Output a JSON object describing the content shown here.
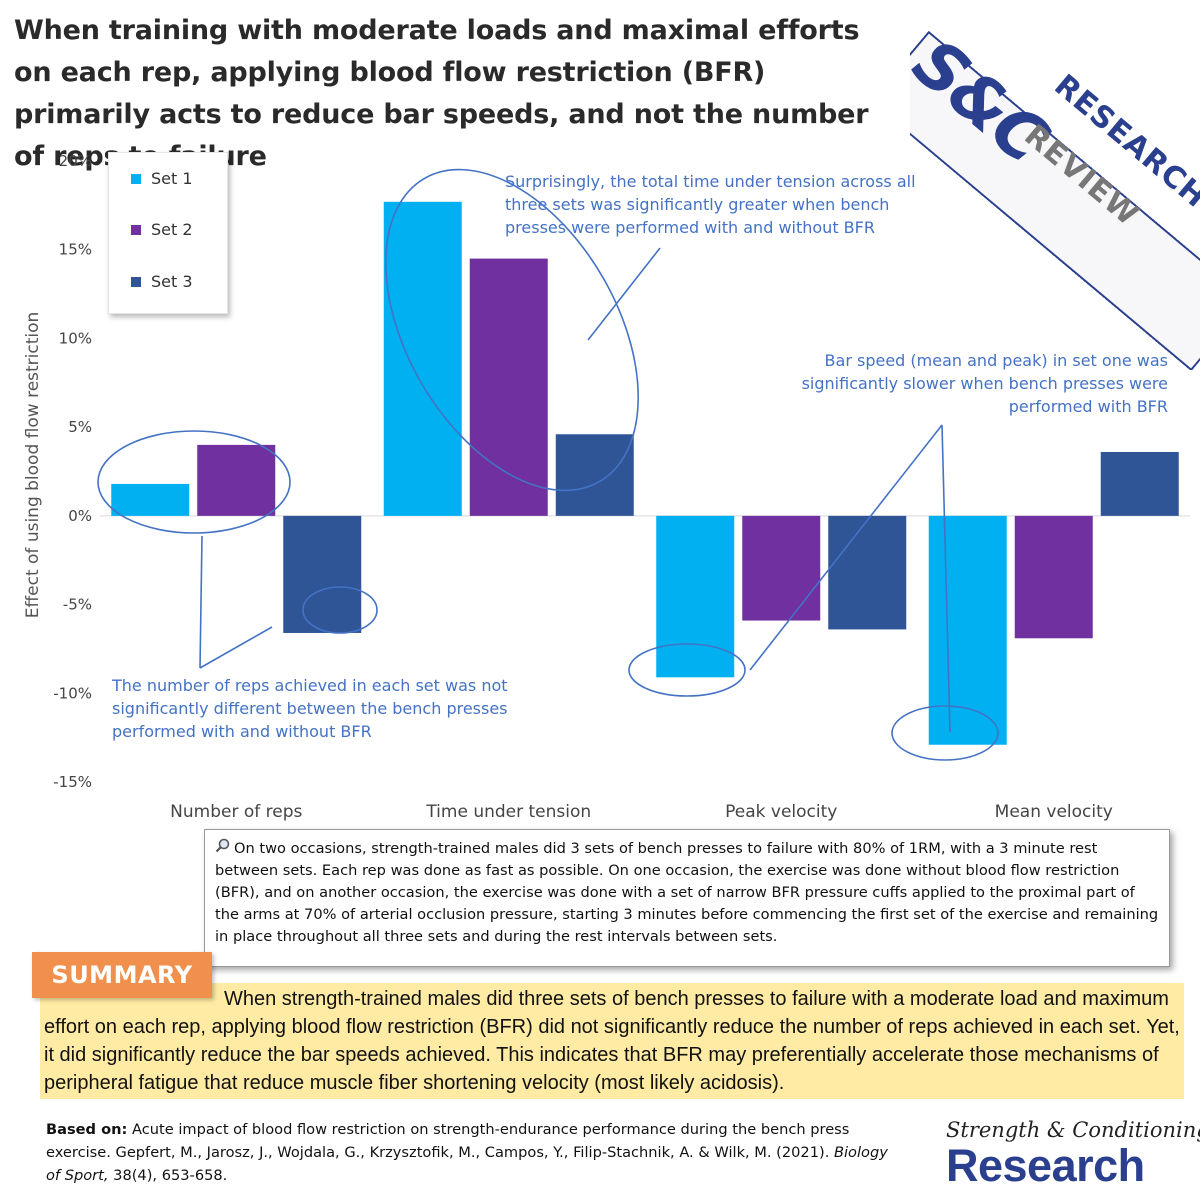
{
  "headline": "When training with moderate loads and maximal efforts on each rep, applying blood flow restriction (BFR) primarily acts to reduce bar speeds, and not the number of reps to failure",
  "logo": {
    "mark": "S&C",
    "word1": "RESEARCH",
    "word2": "REVIEW"
  },
  "colors": {
    "set1": "#00b0f0",
    "set2": "#7030a0",
    "set3": "#2f5597",
    "annotation": "#4472c4",
    "summary_tag": "#f0904c",
    "summary_bg": "#ffeba3",
    "brand": "#2b3f8f"
  },
  "chart_data": {
    "type": "bar",
    "categories": [
      "Number of reps",
      "Time under tension",
      "Peak velocity",
      "Mean velocity"
    ],
    "series": [
      {
        "name": "Set 1",
        "values": [
          1.8,
          17.7,
          -9.1,
          -12.9
        ]
      },
      {
        "name": "Set 2",
        "values": [
          4.0,
          14.5,
          -5.9,
          -6.9
        ]
      },
      {
        "name": "Set 3",
        "values": [
          -6.6,
          4.6,
          -6.4,
          3.6
        ]
      }
    ],
    "ylabel": "Effect of using blood flow restriction",
    "ylim": [
      -15,
      20
    ],
    "yticks": [
      20,
      15,
      10,
      5,
      0,
      -5,
      -10,
      -15
    ],
    "ytick_labels": [
      "20%",
      "15%",
      "10%",
      "5%",
      "0%",
      "-5%",
      "-10%",
      "-15%"
    ],
    "grid": false,
    "legend": "top-left",
    "annotations": [
      "Surprisingly, the total time under tension across all three sets was significantly greater when bench presses were performed with and without BFR",
      "Bar speed (mean and peak) in set one was significantly slower when bench presses were performed with BFR",
      "The number of reps achieved in each set was not significantly different between the bench presses performed with and without BFR"
    ]
  },
  "method_text": "On two occasions, strength-trained males did 3 sets of bench presses to failure with 80% of 1RM, with a 3 minute rest between sets. Each rep was done as fast as possible. On one occasion, the exercise was done without blood flow restriction (BFR), and on another occasion, the exercise was done with a set of narrow BFR pressure cuffs applied to the proximal part of the arms at 70% of arterial occlusion pressure, starting 3 minutes before commencing the first set of the exercise and remaining in place throughout all three sets and during the rest intervals between sets.",
  "method_icon": "magnifier-icon",
  "summary_label": "SUMMARY",
  "summary_text": "When strength-trained males did three sets of bench presses to failure with a moderate load and maximum effort on each rep, applying blood flow restriction (BFR) did not significantly reduce the number of reps achieved in each set. Yet, it did significantly reduce the bar speeds achieved. This indicates that BFR may preferentially accelerate those mechanisms of peripheral fatigue that reduce muscle fiber shortening velocity (most likely acidosis).",
  "source": {
    "label": "Based on:",
    "text": "Acute impact of blood flow restriction on strength-endurance performance during the bench press exercise. Gepfert, M., Jarosz, J., Wojdala, G., Krzysztofik, M., Campos, Y., Filip-Stachnik, A. & Wilk, M. (2021).",
    "journal": "Biology of Sport,",
    "pages": "38(4), 653-658."
  },
  "brand": {
    "line1": "Strength & Conditioning",
    "line2": "Research"
  }
}
